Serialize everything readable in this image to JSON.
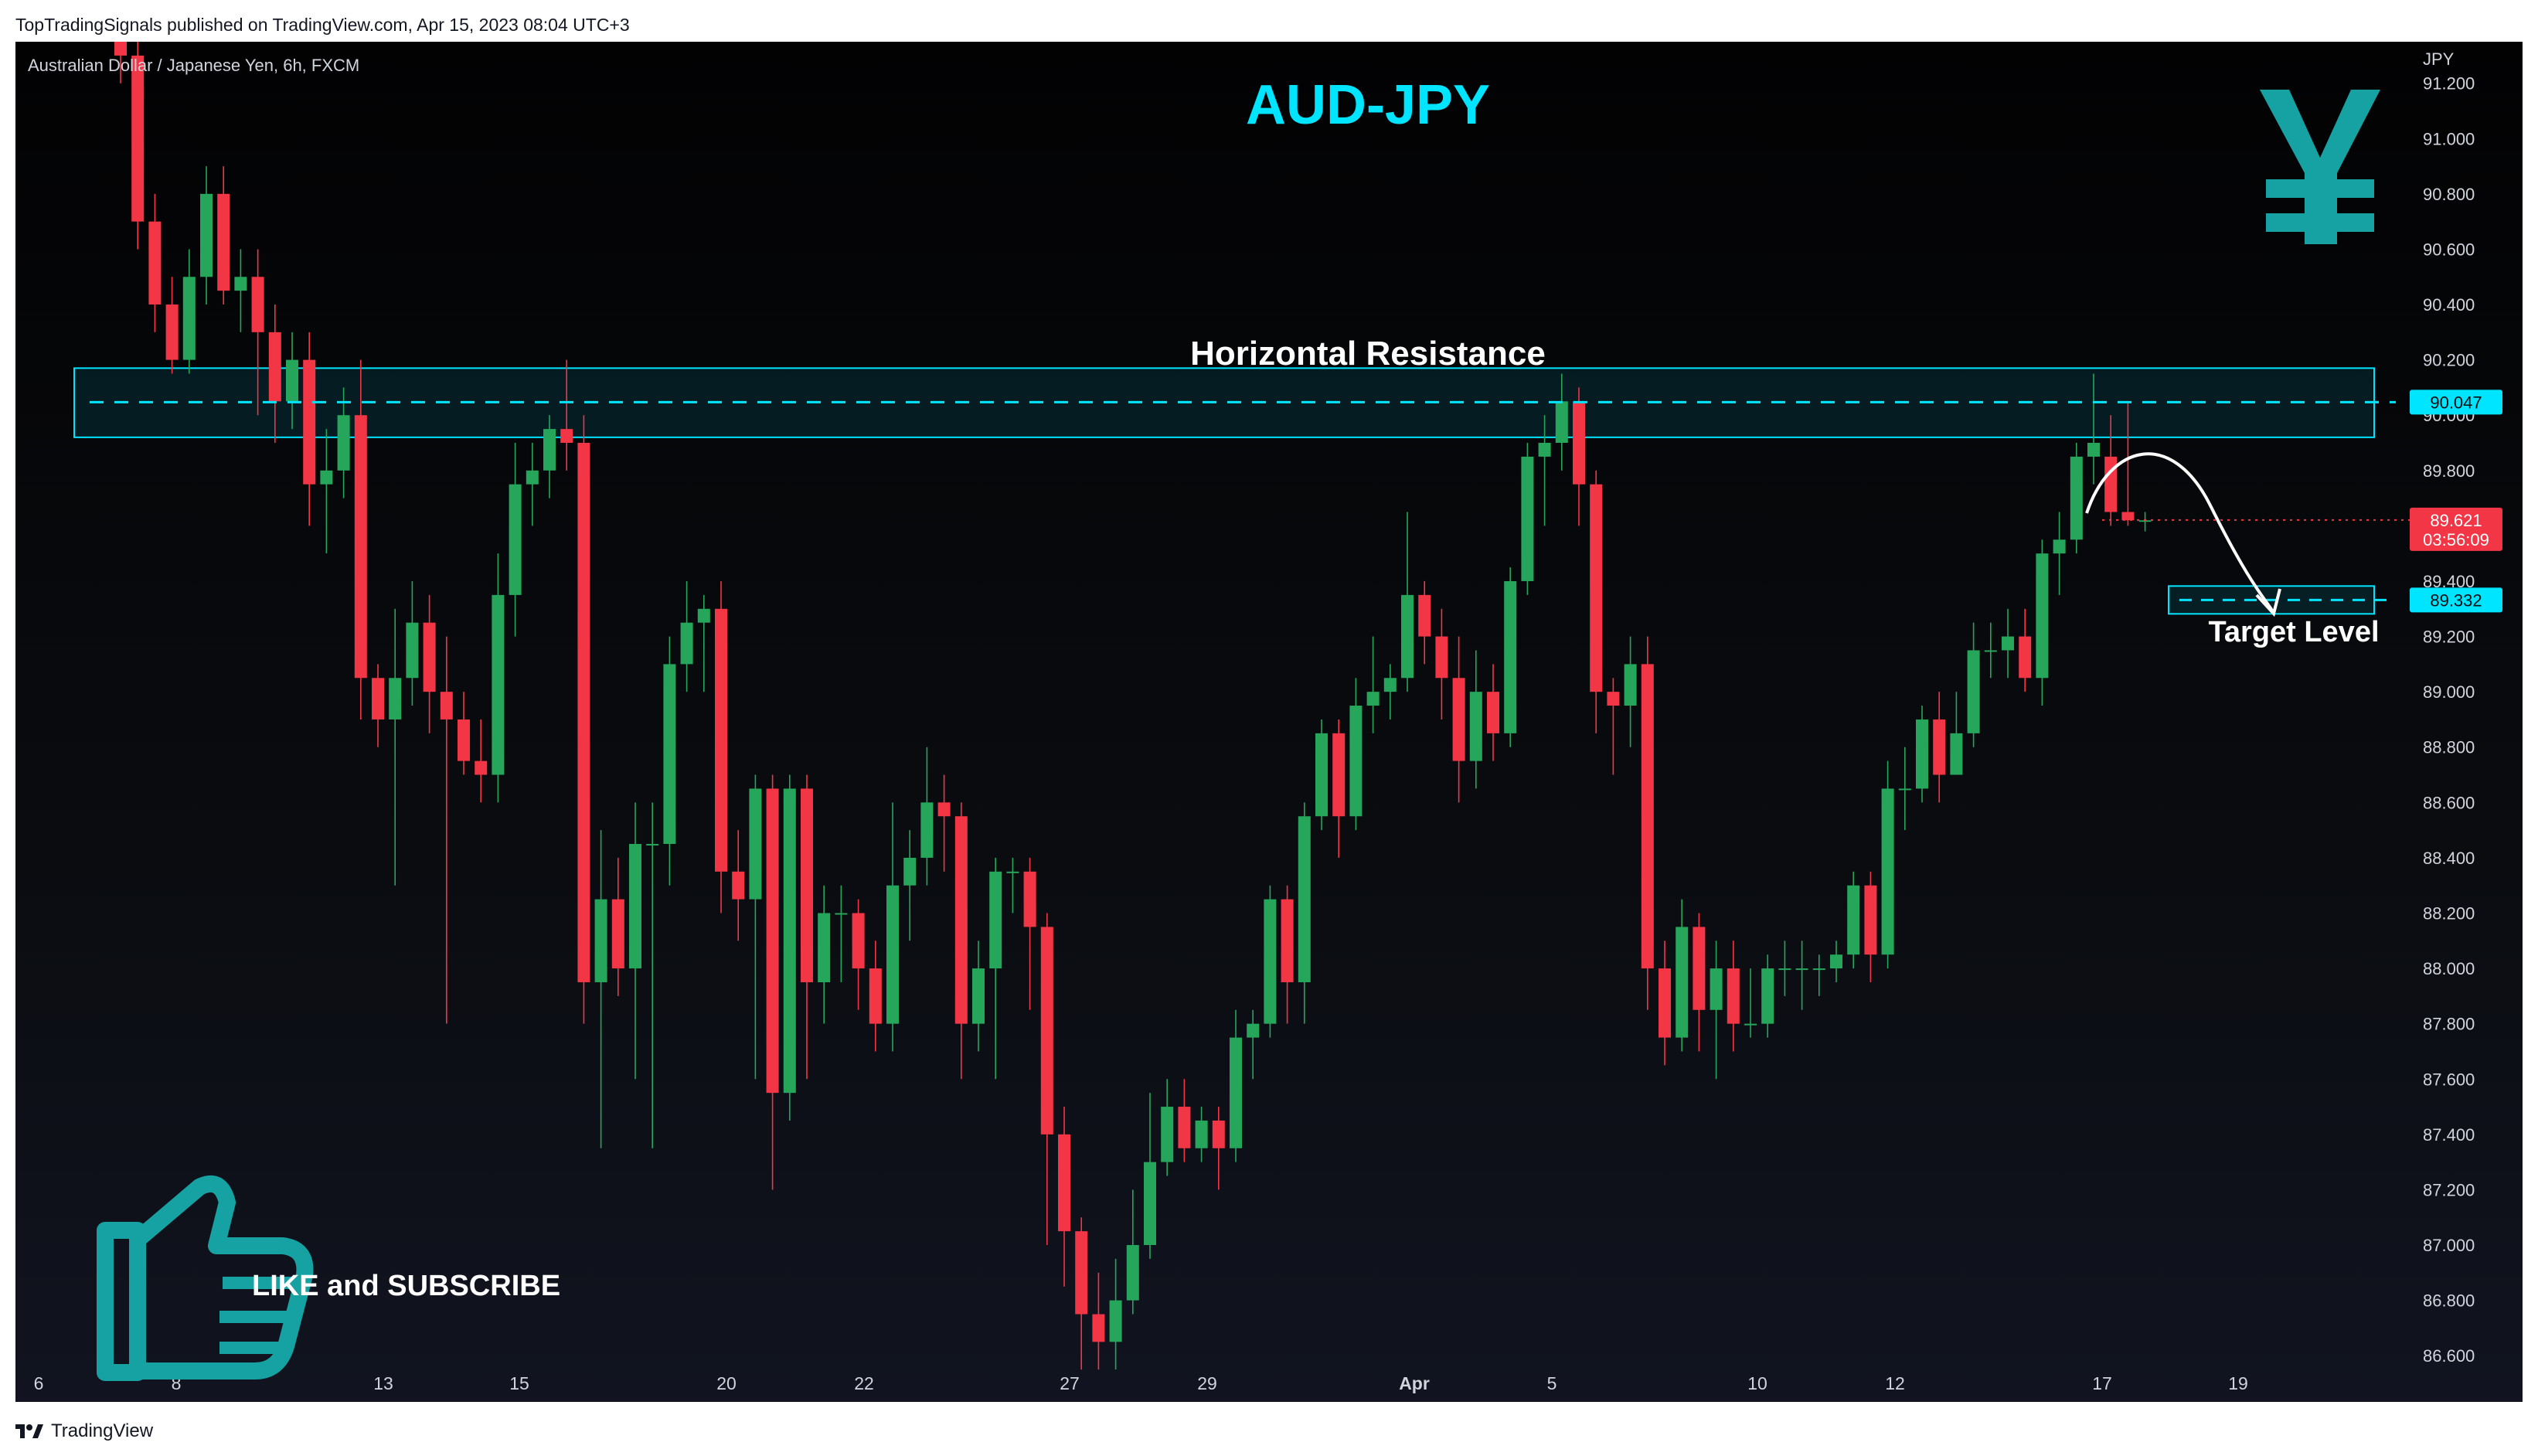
{
  "header": {
    "published_text": "TopTradingSignals published on TradingView.com, Apr 15, 2023 08:04 UTC+3"
  },
  "footer": {
    "brand": "TradingView"
  },
  "colors": {
    "up": "#26a65b",
    "down": "#f23645",
    "accent": "#00e5ff",
    "teal": "#16a2a2",
    "axis_text": "#d1d4dc",
    "background": "#0a0c10"
  },
  "icons": {
    "currency": "yen-icon",
    "like": "thumbs-up-icon",
    "logo": "tradingview-logo-icon"
  },
  "chart_data": {
    "type": "candlestick",
    "symbol_label": "Australian Dollar / Japanese Yen, 6h, FXCM",
    "title": "AUD-JPY",
    "axis_unit": "JPY",
    "ylim": [
      86.5,
      91.35
    ],
    "y_ticks": [
      "91.200",
      "91.000",
      "90.800",
      "90.600",
      "90.400",
      "90.200",
      "90.000",
      "89.800",
      "89.600",
      "89.400",
      "89.200",
      "89.000",
      "88.800",
      "88.600",
      "88.400",
      "88.200",
      "88.000",
      "87.800",
      "87.600",
      "87.400",
      "87.200",
      "87.000",
      "86.800",
      "86.600"
    ],
    "x_ticks": [
      "6",
      "8",
      "13",
      "15",
      "20",
      "22",
      "27",
      "29",
      "Apr",
      "5",
      "10",
      "12",
      "17",
      "19"
    ],
    "candles": [
      [
        91.5,
        91.3,
        91.6,
        91.2
      ],
      [
        91.3,
        90.7,
        91.4,
        90.6
      ],
      [
        90.7,
        90.4,
        90.8,
        90.3
      ],
      [
        90.4,
        90.2,
        90.5,
        90.15
      ],
      [
        90.2,
        90.5,
        90.6,
        90.15
      ],
      [
        90.5,
        90.8,
        90.9,
        90.4
      ],
      [
        90.8,
        90.45,
        90.9,
        90.4
      ],
      [
        90.45,
        90.5,
        90.6,
        90.3
      ],
      [
        90.5,
        90.3,
        90.6,
        90.0
      ],
      [
        90.3,
        90.05,
        90.4,
        89.9
      ],
      [
        90.05,
        90.2,
        90.3,
        89.95
      ],
      [
        90.2,
        89.75,
        90.3,
        89.6
      ],
      [
        89.75,
        89.8,
        89.95,
        89.5
      ],
      [
        89.8,
        90.0,
        90.1,
        89.7
      ],
      [
        90.0,
        89.05,
        90.2,
        88.9
      ],
      [
        89.05,
        88.9,
        89.1,
        88.8
      ],
      [
        88.9,
        89.05,
        89.3,
        88.3
      ],
      [
        89.05,
        89.25,
        89.4,
        88.95
      ],
      [
        89.25,
        89.0,
        89.35,
        88.85
      ],
      [
        89.0,
        88.9,
        89.2,
        87.8
      ],
      [
        88.9,
        88.75,
        89.0,
        88.7
      ],
      [
        88.75,
        88.7,
        88.9,
        88.6
      ],
      [
        88.7,
        89.35,
        89.5,
        88.6
      ],
      [
        89.35,
        89.75,
        89.9,
        89.2
      ],
      [
        89.75,
        89.8,
        89.9,
        89.6
      ],
      [
        89.8,
        89.95,
        90.0,
        89.7
      ],
      [
        89.95,
        89.9,
        90.2,
        89.8
      ],
      [
        89.9,
        87.95,
        90.0,
        87.8
      ],
      [
        87.95,
        88.25,
        88.5,
        87.35
      ],
      [
        88.25,
        88.0,
        88.4,
        87.9
      ],
      [
        88.0,
        88.45,
        88.6,
        87.6
      ],
      [
        88.45,
        88.45,
        88.6,
        87.35
      ],
      [
        88.45,
        89.1,
        89.2,
        88.3
      ],
      [
        89.1,
        89.25,
        89.4,
        89.0
      ],
      [
        89.25,
        89.3,
        89.35,
        89.0
      ],
      [
        89.3,
        88.35,
        89.4,
        88.2
      ],
      [
        88.35,
        88.25,
        88.5,
        88.1
      ],
      [
        88.25,
        88.65,
        88.7,
        87.6
      ],
      [
        88.65,
        87.55,
        88.7,
        87.2
      ],
      [
        87.55,
        88.65,
        88.7,
        87.45
      ],
      [
        88.65,
        87.95,
        88.7,
        87.6
      ],
      [
        87.95,
        88.2,
        88.3,
        87.8
      ],
      [
        88.2,
        88.2,
        88.3,
        87.95
      ],
      [
        88.2,
        88.0,
        88.25,
        87.85
      ],
      [
        88.0,
        87.8,
        88.1,
        87.7
      ],
      [
        87.8,
        88.3,
        88.6,
        87.7
      ],
      [
        88.3,
        88.4,
        88.5,
        88.1
      ],
      [
        88.4,
        88.6,
        88.8,
        88.3
      ],
      [
        88.6,
        88.55,
        88.7,
        88.35
      ],
      [
        88.55,
        87.8,
        88.6,
        87.6
      ],
      [
        87.8,
        88.0,
        88.1,
        87.7
      ],
      [
        88.0,
        88.35,
        88.4,
        87.6
      ],
      [
        88.35,
        88.35,
        88.4,
        88.2
      ],
      [
        88.35,
        88.15,
        88.4,
        87.85
      ],
      [
        88.15,
        87.4,
        88.2,
        87.0
      ],
      [
        87.4,
        87.05,
        87.5,
        86.85
      ],
      [
        87.05,
        86.75,
        87.1,
        86.55
      ],
      [
        86.75,
        86.65,
        86.9,
        86.55
      ],
      [
        86.65,
        86.8,
        86.95,
        86.55
      ],
      [
        86.8,
        87.0,
        87.2,
        86.75
      ],
      [
        87.0,
        87.3,
        87.55,
        86.95
      ],
      [
        87.3,
        87.5,
        87.6,
        87.25
      ],
      [
        87.5,
        87.35,
        87.6,
        87.3
      ],
      [
        87.35,
        87.45,
        87.5,
        87.3
      ],
      [
        87.45,
        87.35,
        87.5,
        87.2
      ],
      [
        87.35,
        87.75,
        87.85,
        87.3
      ],
      [
        87.75,
        87.8,
        87.85,
        87.6
      ],
      [
        87.8,
        88.25,
        88.3,
        87.75
      ],
      [
        88.25,
        87.95,
        88.3,
        87.8
      ],
      [
        87.95,
        88.55,
        88.6,
        87.8
      ],
      [
        88.55,
        88.85,
        88.9,
        88.5
      ],
      [
        88.85,
        88.55,
        88.9,
        88.4
      ],
      [
        88.55,
        88.95,
        89.05,
        88.5
      ],
      [
        88.95,
        89.0,
        89.2,
        88.85
      ],
      [
        89.0,
        89.05,
        89.1,
        88.9
      ],
      [
        89.05,
        89.35,
        89.65,
        89.0
      ],
      [
        89.35,
        89.2,
        89.4,
        89.1
      ],
      [
        89.2,
        89.05,
        89.3,
        88.9
      ],
      [
        89.05,
        88.75,
        89.2,
        88.6
      ],
      [
        88.75,
        89.0,
        89.15,
        88.65
      ],
      [
        89.0,
        88.85,
        89.1,
        88.75
      ],
      [
        88.85,
        89.4,
        89.45,
        88.8
      ],
      [
        89.4,
        89.85,
        89.9,
        89.35
      ],
      [
        89.85,
        89.9,
        90.0,
        89.6
      ],
      [
        89.9,
        90.05,
        90.15,
        89.8
      ],
      [
        90.05,
        89.75,
        90.1,
        89.6
      ],
      [
        89.75,
        89.0,
        89.8,
        88.85
      ],
      [
        89.0,
        88.95,
        89.05,
        88.7
      ],
      [
        88.95,
        89.1,
        89.2,
        88.8
      ],
      [
        89.1,
        88.0,
        89.2,
        87.85
      ],
      [
        88.0,
        87.75,
        88.1,
        87.65
      ],
      [
        87.75,
        88.15,
        88.25,
        87.7
      ],
      [
        88.15,
        87.85,
        88.2,
        87.7
      ],
      [
        87.85,
        88.0,
        88.1,
        87.6
      ],
      [
        88.0,
        87.8,
        88.1,
        87.7
      ],
      [
        87.8,
        87.8,
        88.0,
        87.75
      ],
      [
        87.8,
        88.0,
        88.05,
        87.75
      ],
      [
        88.0,
        88.0,
        88.1,
        87.9
      ],
      [
        88.0,
        88.0,
        88.1,
        87.85
      ],
      [
        88.0,
        88.0,
        88.05,
        87.9
      ],
      [
        88.0,
        88.05,
        88.1,
        87.95
      ],
      [
        88.05,
        88.3,
        88.35,
        88.0
      ],
      [
        88.3,
        88.05,
        88.35,
        87.95
      ],
      [
        88.05,
        88.65,
        88.75,
        88.0
      ],
      [
        88.65,
        88.65,
        88.8,
        88.5
      ],
      [
        88.65,
        88.9,
        88.95,
        88.6
      ],
      [
        88.9,
        88.7,
        89.0,
        88.6
      ],
      [
        88.7,
        88.85,
        89.0,
        88.7
      ],
      [
        88.85,
        89.15,
        89.25,
        88.8
      ],
      [
        89.15,
        89.15,
        89.25,
        89.05
      ],
      [
        89.15,
        89.2,
        89.3,
        89.05
      ],
      [
        89.2,
        89.05,
        89.3,
        89.0
      ],
      [
        89.05,
        89.5,
        89.55,
        88.95
      ],
      [
        89.5,
        89.55,
        89.65,
        89.35
      ],
      [
        89.55,
        89.85,
        89.9,
        89.5
      ],
      [
        89.85,
        89.9,
        90.15,
        89.75
      ],
      [
        89.85,
        89.65,
        90.0,
        89.6
      ],
      [
        89.65,
        89.62,
        90.05,
        89.6
      ],
      [
        89.62,
        89.62,
        89.65,
        89.58
      ]
    ],
    "resistance_zone": [
      89.92,
      90.17
    ],
    "resistance_level": "90.047",
    "current_price": "89.621",
    "countdown": "03:56:09",
    "target_level": "89.332",
    "annotations": {
      "resistance": "Horizontal Resistance",
      "target": "Target Level",
      "cta": "LIKE and SUBSCRIBE"
    }
  }
}
